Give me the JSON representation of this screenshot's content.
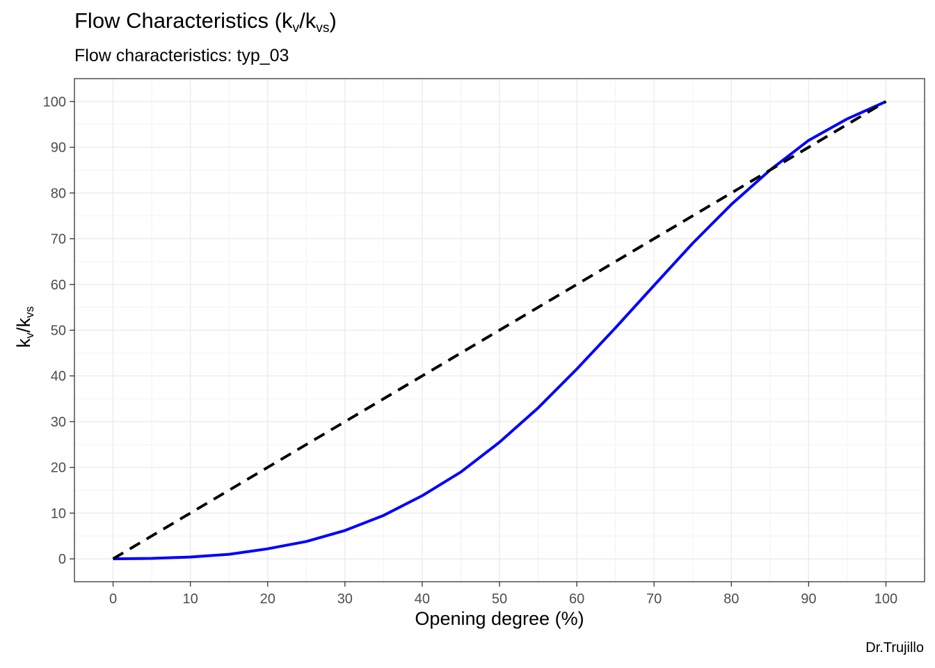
{
  "chart_data": {
    "type": "line",
    "title": {
      "main": "Flow Characteristics (k",
      "sub1": "v",
      "mid": "/k",
      "sub2": "vs",
      "end": ")"
    },
    "subtitle": "Flow characteristics:  typ_03",
    "xlabel": "Opening degree (%)",
    "ylabel": {
      "main": "k",
      "sub1": "v",
      "mid": "/k",
      "sub2": "vs"
    },
    "caption": "Dr.Trujillo",
    "xlim": [
      -5,
      105
    ],
    "ylim": [
      -5,
      105
    ],
    "x_ticks": [
      0,
      10,
      20,
      30,
      40,
      50,
      60,
      70,
      80,
      90,
      100
    ],
    "y_ticks": [
      0,
      10,
      20,
      30,
      40,
      50,
      60,
      70,
      80,
      90,
      100
    ],
    "grid": true,
    "legend": "none",
    "series": [
      {
        "color": "#0000ff",
        "style": "solid",
        "x": [
          0,
          5,
          10,
          15,
          20,
          25,
          30,
          35,
          40,
          45,
          50,
          55,
          60,
          65,
          70,
          75,
          80,
          85,
          90,
          95,
          100
        ],
        "y": [
          0,
          0.1,
          0.4,
          1.0,
          2.2,
          3.8,
          6.2,
          9.5,
          13.8,
          19.0,
          25.5,
          33.0,
          41.5,
          50.5,
          59.8,
          69.0,
          77.5,
          85.0,
          91.5,
          96.2,
          100
        ]
      },
      {
        "color": "#000000",
        "style": "dashed",
        "x": [
          0,
          10,
          20,
          30,
          40,
          50,
          60,
          70,
          80,
          90,
          100
        ],
        "y": [
          0,
          10,
          20,
          30,
          40,
          50,
          60,
          70,
          80,
          90,
          100
        ]
      }
    ]
  }
}
